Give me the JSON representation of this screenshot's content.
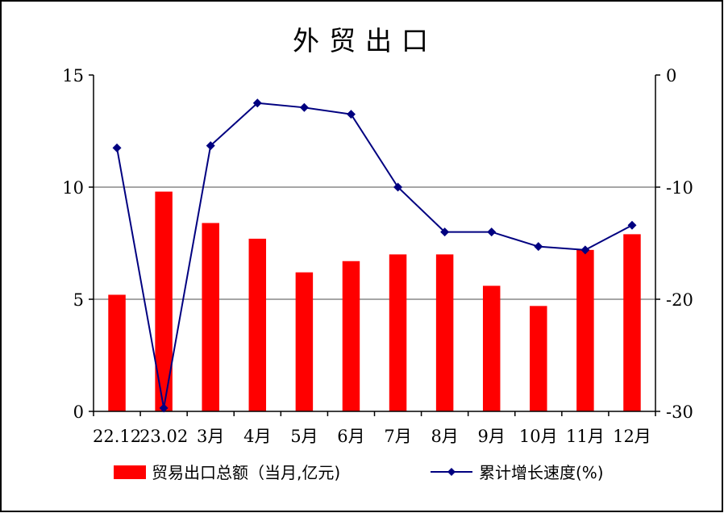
{
  "chart_data": {
    "type": "bar",
    "title": "外贸出口",
    "categories": [
      "22.12",
      "23.02",
      "3月",
      "4月",
      "5月",
      "6月",
      "7月",
      "8月",
      "9月",
      "10月",
      "11月",
      "12月"
    ],
    "series": [
      {
        "name": "贸易出口总额（当月,亿元)",
        "type": "bar",
        "axis": "left",
        "color": "#ff0000",
        "values": [
          5.2,
          9.8,
          8.4,
          7.7,
          6.2,
          6.7,
          7.0,
          7.0,
          5.6,
          4.7,
          7.2,
          7.9
        ]
      },
      {
        "name": "累计增长速度(%)",
        "type": "line",
        "axis": "right",
        "color": "#000080",
        "marker": "diamond",
        "values": [
          -6.5,
          -29.7,
          -6.3,
          -2.5,
          -2.9,
          -3.5,
          -10.0,
          -14.0,
          -14.0,
          -15.3,
          -15.6,
          -13.4
        ]
      }
    ],
    "y_left": {
      "min": 0,
      "max": 15,
      "ticks": [
        0,
        5,
        10,
        15
      ]
    },
    "y_right": {
      "min": -30,
      "max": 0,
      "ticks": [
        0,
        -10,
        -20,
        -30
      ]
    },
    "grid": true,
    "legend_position": "bottom"
  }
}
